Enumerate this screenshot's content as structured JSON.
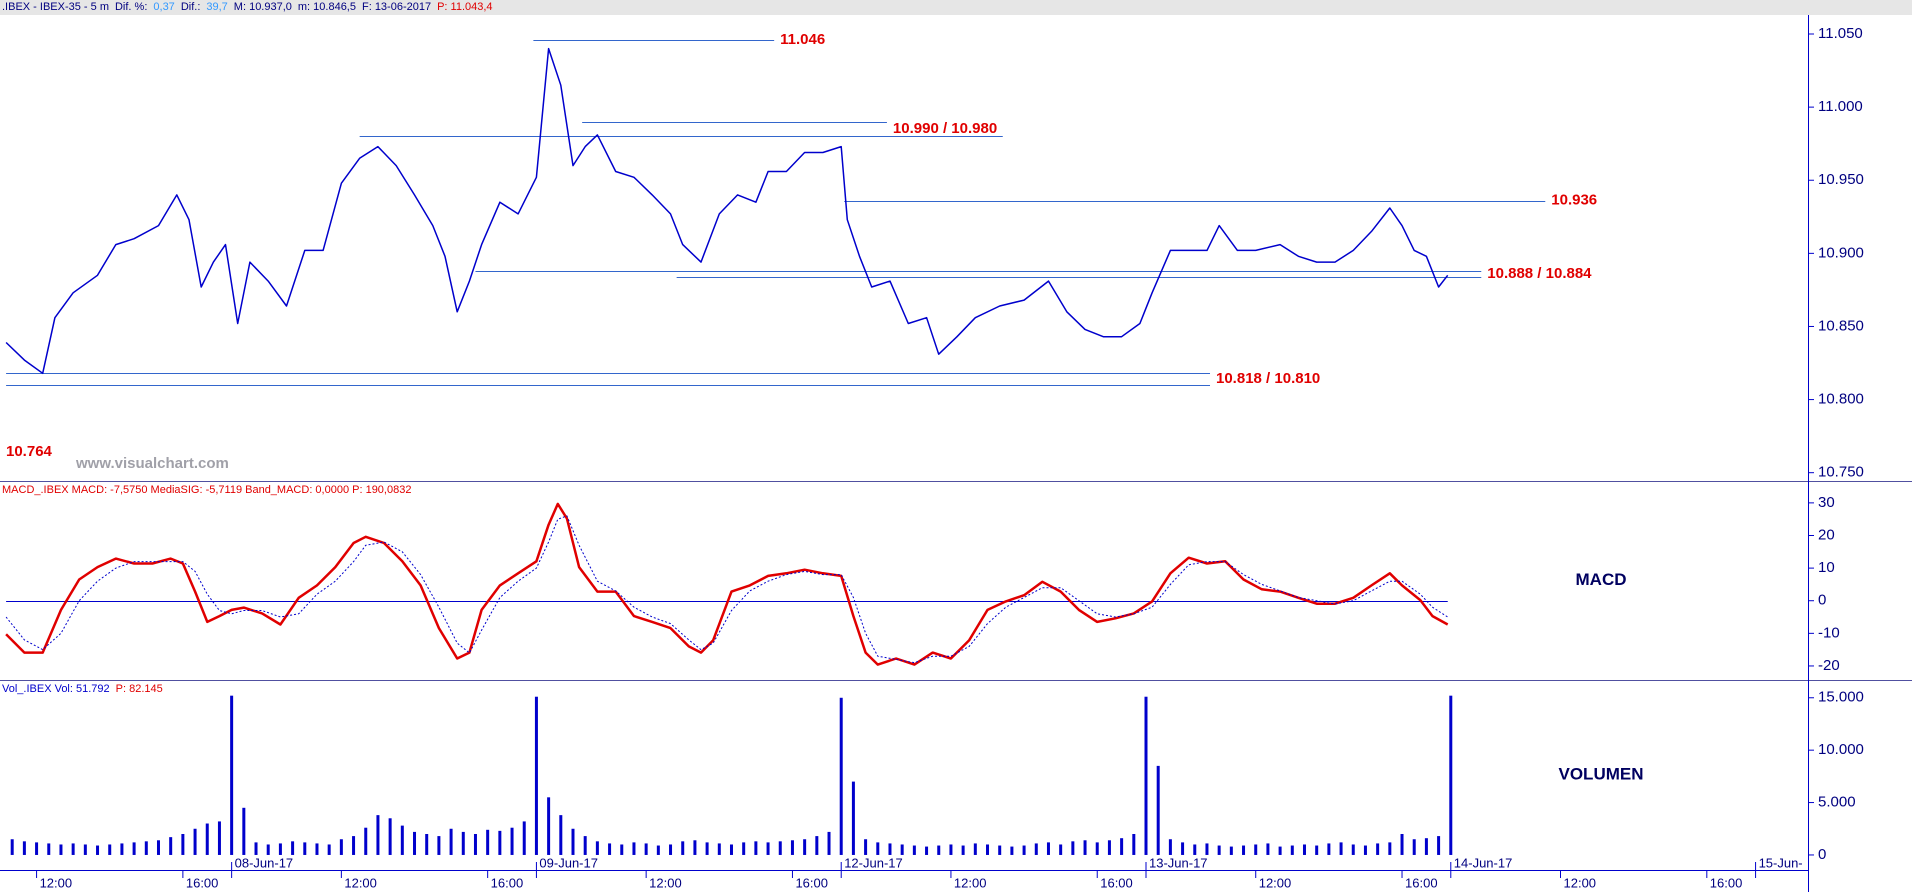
{
  "chart_data": [
    {
      "type": "line",
      "header": [
        {
          "text": ".IBEX - IBEX-35 -  5 m",
          "color": "#000080"
        },
        {
          "text": "Dif. %:",
          "color": "#000080"
        },
        {
          "text": "0,37",
          "color": "#3399ff"
        },
        {
          "text": "Dif.:",
          "color": "#000080"
        },
        {
          "text": "39,7",
          "color": "#3399ff"
        },
        {
          "text": "M: 10.937,0",
          "color": "#000080"
        },
        {
          "text": "m: 10.846,5",
          "color": "#000080"
        },
        {
          "text": "F: 13-06-2017",
          "color": "#000080"
        },
        {
          "text": "P: 11.043,4",
          "color": "#e00000"
        }
      ],
      "watermark": "www.visualchart.com",
      "x": [
        2,
        8,
        14,
        18,
        24,
        32,
        38,
        44,
        52,
        58,
        62,
        66,
        70,
        74,
        78,
        82,
        88,
        94,
        100,
        106,
        112,
        118,
        124,
        130,
        136,
        142,
        146,
        150,
        154,
        158,
        164,
        170,
        176,
        180,
        184,
        188,
        192,
        196,
        202,
        208,
        214,
        220,
        224,
        230,
        236,
        242,
        248,
        252,
        258,
        264,
        270,
        276,
        278,
        282,
        286,
        292,
        298,
        304,
        308,
        314,
        320,
        328,
        336,
        344,
        350,
        356,
        362,
        368,
        374,
        378,
        384,
        390,
        396,
        400,
        406,
        412,
        420,
        426,
        432,
        438,
        444,
        450,
        456,
        460,
        464,
        468,
        472,
        475
      ],
      "series": [
        {
          "color": "#0000cc",
          "width": 1.5,
          "values": [
            10.839,
            10.827,
            10.818,
            10.856,
            10.873,
            10.885,
            10.906,
            10.91,
            10.919,
            10.94,
            10.923,
            10.877,
            10.894,
            10.906,
            10.852,
            10.894,
            10.881,
            10.864,
            10.902,
            10.902,
            10.948,
            10.965,
            10.973,
            10.96,
            10.94,
            10.919,
            10.898,
            10.86,
            10.881,
            10.906,
            10.935,
            10.927,
            10.952,
            11.04,
            11.015,
            10.96,
            10.973,
            10.981,
            10.956,
            10.952,
            10.94,
            10.927,
            10.906,
            10.894,
            10.927,
            10.94,
            10.935,
            10.956,
            10.956,
            10.969,
            10.969,
            10.973,
            10.923,
            10.898,
            10.877,
            10.881,
            10.852,
            10.856,
            10.831,
            10.843,
            10.856,
            10.864,
            10.868,
            10.881,
            10.86,
            10.848,
            10.843,
            10.843,
            10.852,
            10.873,
            10.902,
            10.902,
            10.902,
            10.919,
            10.902,
            10.902,
            10.906,
            10.898,
            10.894,
            10.894,
            10.902,
            10.915,
            10.931,
            10.919,
            10.902,
            10.898,
            10.877,
            10.885
          ]
        }
      ],
      "levels": [
        {
          "label": "11.046",
          "lines": [
            {
              "value": 11.046,
              "x": [
                175,
                254
              ]
            }
          ]
        },
        {
          "label": "10.990 / 10.980",
          "lines": [
            {
              "value": 10.99,
              "x": [
                191,
                291
              ]
            },
            {
              "value": 10.98,
              "x": [
                118,
                329
              ]
            }
          ]
        },
        {
          "label": "10.936",
          "lines": [
            {
              "value": 10.936,
              "x": [
                277,
                507
              ]
            }
          ]
        },
        {
          "label": "10.888 / 10.884",
          "lines": [
            {
              "value": 10.888,
              "x": [
                156,
                486
              ]
            },
            {
              "value": 10.884,
              "x": [
                222,
                486
              ]
            }
          ]
        },
        {
          "label": "10.818 / 10.810",
          "lines": [
            {
              "value": 10.818,
              "x": [
                2,
                397
              ]
            },
            {
              "value": 10.81,
              "x": [
                2,
                397
              ]
            }
          ]
        },
        {
          "label": "10.764",
          "value": 10.764
        }
      ],
      "level_color": "#3366cc",
      "level_label_color": "#e00000",
      "ylim": [
        10.745,
        11.063
      ],
      "yticks": [
        {
          "value": 10.75,
          "label": "10.750"
        },
        {
          "value": 10.8,
          "label": "10.800"
        },
        {
          "value": 10.85,
          "label": "10.850"
        },
        {
          "value": 10.9,
          "label": "10.900"
        },
        {
          "value": 10.95,
          "label": "10.950"
        },
        {
          "value": 11.0,
          "label": "11.000"
        },
        {
          "value": 11.05,
          "label": "11.050"
        }
      ]
    },
    {
      "type": "line",
      "header": [
        {
          "text": "MACD_.IBEX MACD: -7,5750 MediaSIG: -5,7119 Band_MACD: 0,0000 P: 190,0832",
          "color": "#e00000"
        }
      ],
      "label": "MACD",
      "x": [
        2,
        8,
        14,
        20,
        26,
        32,
        38,
        44,
        50,
        56,
        60,
        64,
        68,
        72,
        76,
        80,
        86,
        92,
        98,
        104,
        110,
        116,
        120,
        126,
        132,
        138,
        144,
        150,
        154,
        158,
        164,
        170,
        176,
        180,
        183,
        186,
        190,
        196,
        202,
        208,
        214,
        220,
        226,
        230,
        234,
        240,
        246,
        252,
        258,
        264,
        270,
        276,
        280,
        284,
        288,
        294,
        300,
        306,
        312,
        318,
        324,
        330,
        336,
        342,
        348,
        354,
        360,
        366,
        372,
        378,
        384,
        390,
        396,
        402,
        408,
        414,
        420,
        426,
        432,
        438,
        444,
        450,
        456,
        460,
        466,
        470,
        475
      ],
      "series": [
        {
          "color": "#e00000",
          "width": 2.5,
          "values": [
            -10.3,
            -15.9,
            -15.9,
            -2.8,
            6.5,
            10.3,
            12.9,
            11.4,
            11.4,
            12.9,
            11.4,
            2.8,
            -6.5,
            -4.7,
            -2.8,
            -2.1,
            -3.9,
            -7.3,
            0.9,
            4.7,
            10.3,
            17.7,
            19.6,
            17.7,
            12.1,
            4.7,
            -8.4,
            -17.7,
            -15.9,
            -2.8,
            4.7,
            8.4,
            12.1,
            23.3,
            29.7,
            25.2,
            10.3,
            2.8,
            2.8,
            -4.7,
            -6.5,
            -8.4,
            -14.0,
            -15.9,
            -12.1,
            2.8,
            4.7,
            7.6,
            8.4,
            9.5,
            8.4,
            7.6,
            -4.7,
            -15.9,
            -19.6,
            -17.7,
            -19.6,
            -15.9,
            -17.7,
            -12.1,
            -2.8,
            -0.2,
            1.7,
            5.8,
            2.8,
            -2.8,
            -6.5,
            -5.4,
            -3.9,
            -0.2,
            8.4,
            13.2,
            11.4,
            12.1,
            6.5,
            3.5,
            2.8,
            0.9,
            -0.9,
            -0.9,
            0.9,
            4.7,
            8.4,
            4.7,
            0.2,
            -4.7,
            -7.3
          ]
        },
        {
          "color": "#0000cc",
          "width": 1,
          "dash": true,
          "values": [
            -5,
            -12,
            -15,
            -10,
            0,
            6,
            10,
            12,
            12,
            12,
            12,
            9,
            2,
            -3,
            -4,
            -3,
            -3,
            -5,
            -4,
            2,
            6,
            12,
            17,
            18,
            15,
            8,
            -2,
            -13,
            -16,
            -9,
            1,
            6,
            10,
            18,
            25,
            26,
            17,
            6,
            3,
            -2,
            -5,
            -7,
            -12,
            -15,
            -13,
            -3,
            3,
            6,
            8,
            9,
            8,
            8,
            1,
            -10,
            -17,
            -18,
            -19,
            -17,
            -17,
            -14,
            -7,
            -2,
            1,
            4,
            4,
            0,
            -4,
            -5,
            -4,
            -2,
            5,
            11,
            12,
            12,
            8,
            5,
            3,
            1,
            0,
            -1,
            0,
            3,
            6,
            6,
            2,
            -2,
            -5
          ]
        }
      ],
      "band": 0,
      "band_color": "#0000cc",
      "ylim": [
        -24,
        36.4
      ],
      "yticks": [
        -20,
        -10,
        0,
        10,
        20,
        30
      ]
    },
    {
      "type": "bar",
      "header": [
        {
          "text": "Vol_.IBEX Vol: 51.792",
          "color": "#0000cc"
        },
        {
          "text": "P: 82.145",
          "color": "#e00000"
        }
      ],
      "label": "VOLUMEN",
      "color": "#0000cc",
      "x": [
        4,
        8,
        12,
        16,
        20,
        24,
        28,
        32,
        36,
        40,
        44,
        48,
        52,
        56,
        60,
        64,
        68,
        72,
        76,
        80,
        84,
        88,
        92,
        96,
        100,
        104,
        108,
        112,
        116,
        120,
        124,
        128,
        132,
        136,
        140,
        144,
        148,
        152,
        156,
        160,
        164,
        168,
        172,
        176,
        180,
        184,
        188,
        192,
        196,
        200,
        204,
        208,
        212,
        216,
        220,
        224,
        228,
        232,
        236,
        240,
        244,
        248,
        252,
        256,
        260,
        264,
        268,
        272,
        276,
        280,
        284,
        288,
        292,
        296,
        300,
        304,
        308,
        312,
        316,
        320,
        324,
        328,
        332,
        336,
        340,
        344,
        348,
        352,
        356,
        360,
        364,
        368,
        372,
        376,
        380,
        384,
        388,
        392,
        396,
        400,
        404,
        408,
        412,
        416,
        420,
        424,
        428,
        432,
        436,
        440,
        444,
        448,
        452,
        456,
        460,
        464,
        468,
        472,
        476
      ],
      "values": [
        1500,
        1300,
        1200,
        1100,
        1000,
        1100,
        1000,
        900,
        1000,
        1100,
        1200,
        1300,
        1400,
        1700,
        2000,
        2500,
        3000,
        3200,
        15200,
        4500,
        1200,
        1000,
        1100,
        1300,
        1200,
        1100,
        1000,
        1500,
        1800,
        2600,
        3800,
        3500,
        2800,
        2200,
        2000,
        1800,
        2500,
        2200,
        2000,
        2400,
        2300,
        2600,
        3200,
        15100,
        5500,
        3800,
        2500,
        1800,
        1300,
        1100,
        1000,
        1200,
        1100,
        900,
        1000,
        1300,
        1400,
        1200,
        1100,
        1000,
        1200,
        1300,
        1200,
        1300,
        1400,
        1500,
        1800,
        2200,
        15000,
        7000,
        1500,
        1200,
        1100,
        1000,
        900,
        800,
        900,
        1000,
        900,
        1100,
        1000,
        900,
        800,
        900,
        1100,
        1200,
        1000,
        1300,
        1400,
        1200,
        1400,
        1600,
        2000,
        15100,
        8500,
        1500,
        1200,
        1000,
        1100,
        900,
        800,
        900,
        1000,
        1100,
        800,
        900,
        1000,
        900,
        1100,
        1200,
        1000,
        900,
        1100,
        1200,
        2000,
        1500,
        1600,
        1800,
        15200
      ],
      "ylim": [
        -1340,
        16600
      ],
      "yticks": [
        0,
        {
          "value": 5000,
          "label": "5.000"
        },
        {
          "value": 10000,
          "label": "10.000"
        },
        {
          "value": 15000,
          "label": "15.000"
        }
      ],
      "xlim": [
        0,
        593.2
      ],
      "xticks": [
        {
          "value": 12,
          "label": "12:00"
        },
        {
          "value": 60,
          "label": "16:00"
        },
        {
          "value": 112,
          "label": "12:00"
        },
        {
          "value": 160,
          "label": "16:00"
        },
        {
          "value": 212,
          "label": "12:00"
        },
        {
          "value": 260,
          "label": "16:00"
        },
        {
          "value": 312,
          "label": "12:00"
        },
        {
          "value": 360,
          "label": "16:00"
        },
        {
          "value": 412,
          "label": "12:00"
        },
        {
          "value": 460,
          "label": "16:00"
        },
        {
          "value": 512,
          "label": "12:00"
        },
        {
          "value": 560,
          "label": "16:00"
        }
      ],
      "date_ticks": [
        {
          "value": 76,
          "label": "08-Jun-17"
        },
        {
          "value": 176,
          "label": "09-Jun-17"
        },
        {
          "value": 276,
          "label": "12-Jun-17"
        },
        {
          "value": 376,
          "label": "13-Jun-17"
        },
        {
          "value": 476,
          "label": "14-Jun-17"
        },
        {
          "value": 576,
          "label": "15-Jun-"
        }
      ]
    }
  ]
}
